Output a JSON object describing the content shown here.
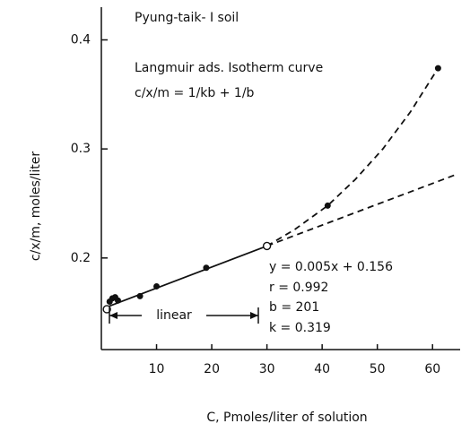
{
  "chart_data": {
    "type": "scatter",
    "title": "Pyung-taik- I soil",
    "x_label": "C, Pmoles/liter of solution",
    "y_label": "c/x/m,  moles/liter",
    "annotations": [
      "Langmuir ads. Isotherm curve",
      "c/x/m = 1/kb + 1/b",
      "y = 0.005x + 0.156",
      "r = 0.992",
      "b = 201",
      "k = 0.319",
      "linear"
    ],
    "xlim": [
      0,
      65
    ],
    "ylim": [
      0.116,
      0.43
    ],
    "xticks": [
      10,
      20,
      30,
      40,
      50,
      60
    ],
    "yticks": [
      0.2,
      0.3,
      0.4
    ],
    "color": "#111111",
    "series": [
      {
        "marker": "filled",
        "x": [
          1.5,
          2,
          2.5,
          3,
          7,
          10,
          19,
          41,
          61
        ],
        "values": [
          0.16,
          0.163,
          0.164,
          0.161,
          0.165,
          0.174,
          0.191,
          0.248,
          0.374
        ]
      },
      {
        "marker": "open",
        "x": [
          1,
          30
        ],
        "values": [
          0.153,
          0.211
        ]
      }
    ],
    "lines": [
      {
        "style": "solid",
        "x": [
          1,
          30
        ],
        "values": [
          0.155,
          0.211
        ]
      },
      {
        "style": "dashed",
        "x": [
          30,
          64
        ],
        "values": [
          0.211,
          0.276
        ]
      },
      {
        "style": "dashed",
        "x": [
          30,
          35,
          41,
          46,
          51,
          56,
          61
        ],
        "values": [
          0.211,
          0.226,
          0.248,
          0.272,
          0.3,
          0.334,
          0.374
        ]
      }
    ]
  }
}
